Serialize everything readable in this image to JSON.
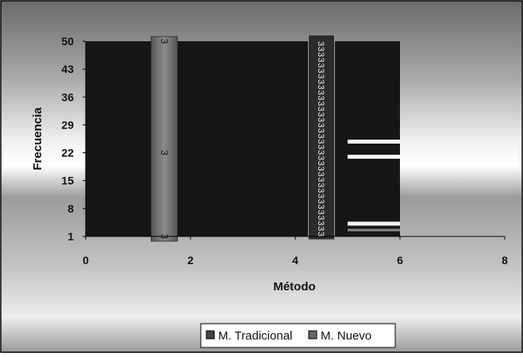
{
  "chart_data": {
    "type": "bar",
    "xlabel": "Método",
    "ylabel": "Frecuencia",
    "xlim": [
      0,
      8
    ],
    "x_ticks": [
      "0",
      "2",
      "4",
      "6",
      "8"
    ],
    "ylim": [
      1,
      50
    ],
    "y_ticks": [
      "1",
      "8",
      "15",
      "22",
      "29",
      "36",
      "43",
      "50"
    ],
    "series": [
      {
        "name": "M. Tradicional",
        "color": "#444444"
      },
      {
        "name": "M. Nuevo",
        "color": "#666666"
      }
    ],
    "column_label_marker": "3",
    "legend": {
      "position": "bottom"
    },
    "colors": {
      "plot_fill": "#161616",
      "column_gray": "#707070",
      "white_line": "#f4f4f4",
      "border": "#000000",
      "text": "#111111"
    }
  }
}
